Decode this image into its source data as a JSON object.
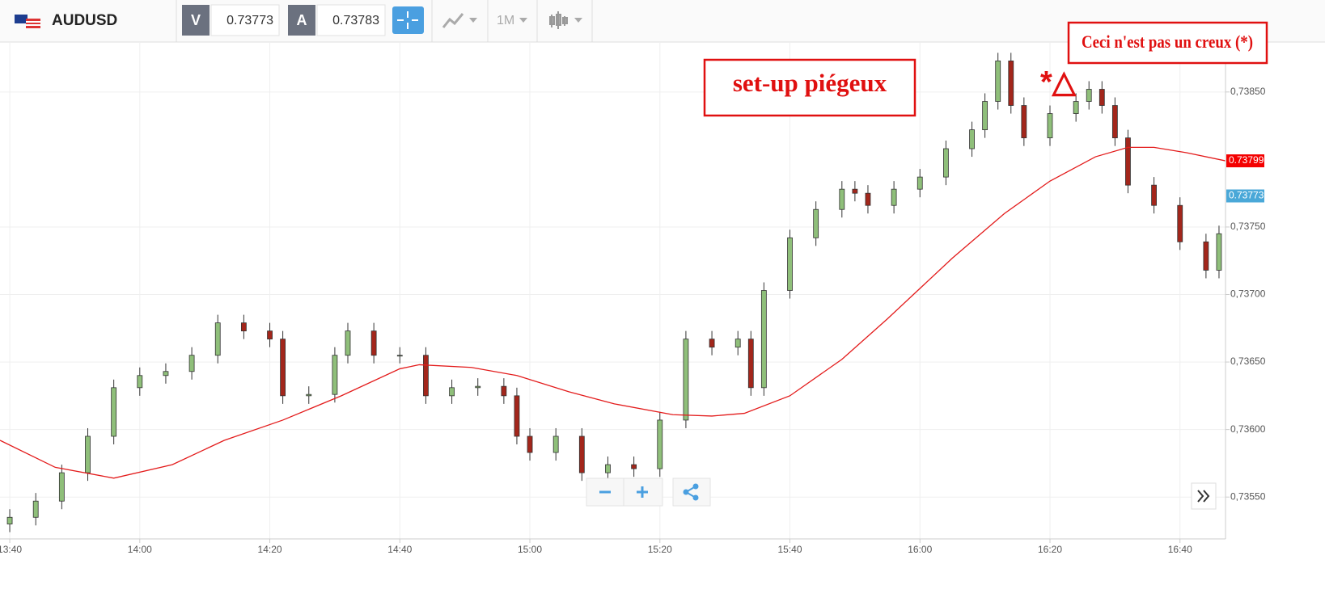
{
  "toolbar": {
    "symbol": "AUDUSD",
    "sell_label": "V",
    "sell_price": "0.73773",
    "buy_label": "A",
    "buy_price": "0.73783",
    "timeframe": "1M"
  },
  "chart_data": {
    "type": "candlestick",
    "x": [
      820,
      824,
      828,
      832,
      836,
      840,
      844,
      848,
      852,
      856,
      860,
      862,
      866,
      870,
      872,
      876,
      880,
      884,
      888,
      892,
      896,
      898,
      900,
      904,
      908,
      912,
      916,
      920,
      924,
      928,
      932,
      934,
      936,
      940,
      944,
      948,
      950,
      952,
      956,
      960,
      964,
      968,
      970,
      972,
      974,
      976,
      980,
      984,
      986,
      988,
      990,
      992,
      996,
      1000,
      1004,
      1006
    ],
    "open": [
      0.7353,
      0.73535,
      0.73547,
      0.73568,
      0.73595,
      0.73631,
      0.7364,
      0.73643,
      0.73655,
      0.73679,
      0.73673,
      0.73667,
      0.73625,
      0.73626,
      0.73655,
      0.73673,
      0.73655,
      0.73655,
      0.73625,
      0.73631,
      0.73632,
      0.73625,
      0.73595,
      0.73583,
      0.73595,
      0.73568,
      0.73574,
      0.73571,
      0.73607,
      0.73667,
      0.73661,
      0.73667,
      0.73631,
      0.73703,
      0.73742,
      0.73763,
      0.73778,
      0.73775,
      0.73766,
      0.73778,
      0.73787,
      0.73808,
      0.73822,
      0.73843,
      0.73873,
      0.7384,
      0.73816,
      0.73834,
      0.73843,
      0.73852,
      0.7384,
      0.73816,
      0.73781,
      0.73766,
      0.73739,
      0.73718
    ],
    "high": [
      0.73541,
      0.73553,
      0.73574,
      0.73601,
      0.73637,
      0.73646,
      0.73649,
      0.73661,
      0.73685,
      0.73685,
      0.73679,
      0.73673,
      0.73632,
      0.73661,
      0.73679,
      0.73679,
      0.73661,
      0.73661,
      0.73637,
      0.73638,
      0.73638,
      0.73631,
      0.73601,
      0.73601,
      0.73601,
      0.7358,
      0.7358,
      0.73613,
      0.73673,
      0.73673,
      0.73673,
      0.73673,
      0.73709,
      0.73748,
      0.73769,
      0.73784,
      0.73784,
      0.73781,
      0.73784,
      0.73793,
      0.73814,
      0.73828,
      0.73849,
      0.73879,
      0.73879,
      0.73846,
      0.7384,
      0.73849,
      0.73858,
      0.73858,
      0.73846,
      0.73822,
      0.73787,
      0.73772,
      0.73745,
      0.73751
    ],
    "low": [
      0.73524,
      0.73529,
      0.73541,
      0.73562,
      0.73589,
      0.73625,
      0.73634,
      0.73637,
      0.73649,
      0.73667,
      0.73661,
      0.73619,
      0.73619,
      0.7362,
      0.73649,
      0.73649,
      0.73649,
      0.73619,
      0.73619,
      0.73625,
      0.73619,
      0.73589,
      0.73577,
      0.73577,
      0.73562,
      0.73562,
      0.73565,
      0.73565,
      0.73601,
      0.73655,
      0.73655,
      0.73625,
      0.73625,
      0.73697,
      0.73736,
      0.73757,
      0.73769,
      0.7376,
      0.7376,
      0.73772,
      0.73781,
      0.73802,
      0.73816,
      0.73837,
      0.73834,
      0.7381,
      0.7381,
      0.73828,
      0.73837,
      0.73834,
      0.7381,
      0.73775,
      0.7376,
      0.73733,
      0.73712,
      0.73712
    ],
    "close": [
      0.73535,
      0.73547,
      0.73568,
      0.73595,
      0.73631,
      0.7364,
      0.73643,
      0.73655,
      0.73679,
      0.73673,
      0.73667,
      0.73625,
      0.73626,
      0.73655,
      0.73673,
      0.73655,
      0.73655,
      0.73625,
      0.73631,
      0.73632,
      0.73625,
      0.73595,
      0.73583,
      0.73595,
      0.73568,
      0.73574,
      0.73571,
      0.73607,
      0.73667,
      0.73661,
      0.73667,
      0.73631,
      0.73703,
      0.73742,
      0.73763,
      0.73778,
      0.73775,
      0.73766,
      0.73778,
      0.73787,
      0.73808,
      0.73822,
      0.73843,
      0.73873,
      0.7384,
      0.73816,
      0.73834,
      0.73843,
      0.73852,
      0.7384,
      0.73816,
      0.73781,
      0.73766,
      0.73739,
      0.73718,
      0.73745
    ],
    "up_color": "#8fbf7a",
    "down_color": "#a3261b",
    "overlay": {
      "type": "line",
      "color": "#e31b1b",
      "x": [
        818.5,
        827,
        836,
        845,
        853,
        862,
        871,
        880,
        883,
        891,
        898,
        906,
        913,
        922,
        928,
        933,
        940,
        948,
        955,
        965,
        973,
        980,
        987,
        992,
        996,
        1001,
        1007
      ],
      "values": [
        0.73592,
        0.73572,
        0.73564,
        0.73574,
        0.73592,
        0.73607,
        0.73625,
        0.73645,
        0.73648,
        0.73646,
        0.7364,
        0.73628,
        0.73619,
        0.73611,
        0.7361,
        0.73612,
        0.73625,
        0.73652,
        0.73682,
        0.73727,
        0.7376,
        0.73784,
        0.73802,
        0.73809,
        0.73809,
        0.73805,
        0.73799
      ]
    },
    "xlim": [
      818.5,
      1007
    ],
    "ylim": [
      0.73519,
      0.73887
    ],
    "xticks": [
      {
        "value": 820,
        "label": "13:40"
      },
      {
        "value": 840,
        "label": "14:00"
      },
      {
        "value": 860,
        "label": "14:20"
      },
      {
        "value": 880,
        "label": "14:40"
      },
      {
        "value": 900,
        "label": "15:00"
      },
      {
        "value": 920,
        "label": "15:20"
      },
      {
        "value": 940,
        "label": "15:40"
      },
      {
        "value": 960,
        "label": "16:00"
      },
      {
        "value": 980,
        "label": "16:20"
      },
      {
        "value": 1000,
        "label": "16:40"
      }
    ],
    "yticks": [
      {
        "value": 0.7355,
        "label": "0,73550"
      },
      {
        "value": 0.736,
        "label": "0,73600"
      },
      {
        "value": 0.7365,
        "label": "0,73650"
      },
      {
        "value": 0.737,
        "label": "0,73700"
      },
      {
        "value": 0.7375,
        "label": "0,73750"
      },
      {
        "value": 0.7385,
        "label": "0,73850"
      }
    ],
    "grid": true,
    "price_tags": [
      {
        "value": 0.73799,
        "color": "#f40000"
      },
      {
        "value": 0.73773,
        "color": "#4aa8d8"
      }
    ],
    "annotations": [
      "set-up piégeux",
      "Ceci n'est pas un creux (*)",
      "*△"
    ]
  }
}
